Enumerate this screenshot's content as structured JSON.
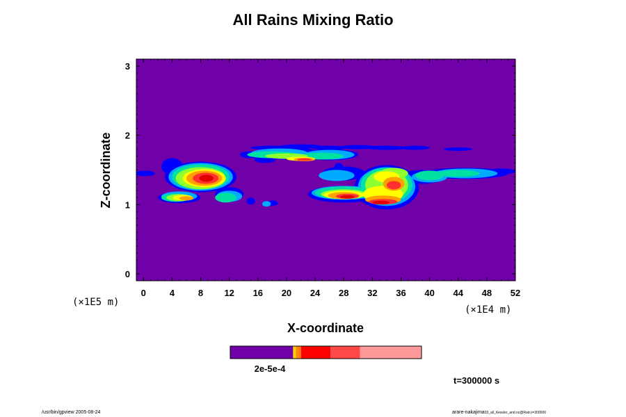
{
  "chart_data": {
    "type": "heatmap",
    "title": "All Rains Mixing Ratio",
    "xlabel": "X-coordinate",
    "ylabel": "Z-coordinate",
    "x_scale_note": "(×1E4 m)",
    "y_scale_note": "(×1E5 m)",
    "xlim": [
      -1,
      52
    ],
    "ylim": [
      -0.1,
      3.1
    ],
    "x_ticks": [
      0,
      4,
      8,
      12,
      16,
      20,
      24,
      28,
      32,
      36,
      40,
      44,
      48,
      52
    ],
    "y_ticks": [
      0,
      1,
      2,
      3
    ],
    "background_color": "#7000A8",
    "colorbar": {
      "colors": [
        "#7000A8",
        "#FFD000",
        "#FF8C00",
        "#FF7A10",
        "#FF0000",
        "#FF4848",
        "#FF9A9A"
      ],
      "labels_overlapped": [
        "2e-5",
        "5e-5",
        "1e-4"
      ],
      "label_text": "2e-5e-4"
    },
    "regions": [
      {
        "name": "high-cloud layer",
        "x_range": [
          15,
          49
        ],
        "z_range": [
          1.58,
          1.88
        ],
        "peak_x": 22.5,
        "peak_z": 1.65,
        "max_level": "red"
      },
      {
        "name": "left cell",
        "x_range": [
          3,
          15
        ],
        "z_range": [
          0.95,
          1.68
        ],
        "peak_x": 8.5,
        "peak_z": 1.38,
        "max_level": "red"
      },
      {
        "name": "right cell",
        "x_range": [
          22,
          38
        ],
        "z_range": [
          0.95,
          1.62
        ],
        "peak_x": 33.5,
        "peak_z": 1.05,
        "max_level": "red"
      },
      {
        "name": "left edge strip",
        "x_range": [
          -1,
          0.5
        ],
        "z_range": [
          1.4,
          1.5
        ],
        "max_level": "blue"
      },
      {
        "name": "right trailing strip",
        "x_range": [
          38,
          52
        ],
        "z_range": [
          1.35,
          1.6
        ],
        "max_level": "green"
      }
    ]
  },
  "time_label": "t=300000 s",
  "footer": {
    "left": "/usr/bin/gpview 2005-08-24",
    "right_main": "arare-nakajima",
    "right_small": "03_all_Kessler_and.nc@Rain,t=300000"
  }
}
